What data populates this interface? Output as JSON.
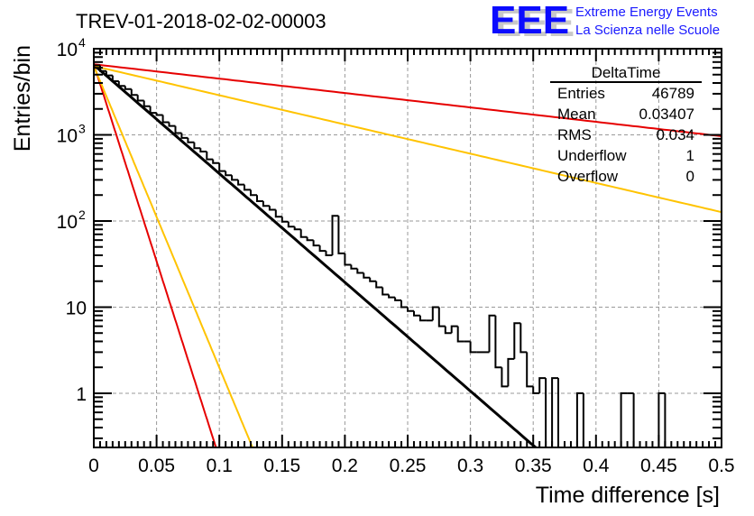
{
  "chart_data": {
    "type": "bar",
    "subtype": "histogram-log-y",
    "title": "TREV-01-2018-02-02-00003",
    "xlabel": "Time difference [s]",
    "ylabel": "Entries/bin",
    "xlim": [
      0,
      0.5
    ],
    "ylim_log": [
      0.235,
      10000
    ],
    "log_y": true,
    "grid": true,
    "x_ticks": [
      "0",
      "0.05",
      "0.1",
      "0.15",
      "0.2",
      "0.25",
      "0.3",
      "0.35",
      "0.4",
      "0.45",
      "0.5"
    ],
    "x_tick_values": [
      0,
      0.05,
      0.1,
      0.15,
      0.2,
      0.25,
      0.3,
      0.35,
      0.4,
      0.45,
      0.5
    ],
    "y_ticks": [
      {
        "value": 1,
        "base": "1",
        "exp": ""
      },
      {
        "value": 10,
        "base": "10",
        "exp": ""
      },
      {
        "value": 100,
        "base": "10",
        "exp": "2"
      },
      {
        "value": 1000,
        "base": "10",
        "exp": "3"
      },
      {
        "value": 10000,
        "base": "10",
        "exp": "4"
      }
    ],
    "bin_width": 0.005,
    "histogram": {
      "name": "DeltaTime",
      "color": "#000000",
      "bin_start": 0,
      "values": [
        6400,
        5500,
        4900,
        4200,
        3700,
        3400,
        2900,
        2500,
        2150,
        1800,
        1700,
        1400,
        1270,
        1050,
        920,
        820,
        700,
        640,
        520,
        470,
        380,
        340,
        300,
        265,
        230,
        200,
        170,
        150,
        135,
        112,
        98,
        86,
        80,
        65,
        60,
        52,
        45,
        40,
        115,
        42,
        31,
        28,
        25,
        22,
        20,
        17,
        14,
        13,
        12,
        10,
        9,
        8,
        7,
        7,
        10,
        6,
        5,
        6,
        4,
        4,
        3,
        3,
        3,
        8,
        2,
        1.2,
        2.5,
        6.5,
        3,
        1.2,
        1,
        1.5,
        0,
        1.5,
        0,
        0,
        0,
        1,
        0,
        0,
        0,
        0,
        0,
        0,
        1,
        1,
        0,
        0,
        0,
        0,
        1,
        0,
        0,
        0,
        0,
        0,
        0,
        0,
        0,
        0
      ]
    },
    "series": [
      {
        "name": "fit",
        "color": "#000000",
        "type": "line",
        "n0": 6500,
        "tau": 0.0344,
        "x_range": [
          0,
          0.355
        ]
      },
      {
        "name": "red-slow",
        "color": "#e60000",
        "type": "line",
        "n0": 6600,
        "tau": 0.26,
        "x_range": [
          0,
          0.5
        ]
      },
      {
        "name": "yellow-slow",
        "color": "#ffc300",
        "type": "line",
        "n0": 6300,
        "tau": 0.128,
        "x_range": [
          0,
          0.5
        ]
      },
      {
        "name": "red-fast",
        "color": "#e60000",
        "type": "line",
        "n0": 6600,
        "tau": 0.0095,
        "x_range": [
          0,
          0.105
        ]
      },
      {
        "name": "yellow-fast",
        "color": "#ffc300",
        "type": "line",
        "n0": 6300,
        "tau": 0.0124,
        "x_range": [
          0,
          0.133
        ]
      }
    ],
    "stats_box": {
      "title": "DeltaTime",
      "rows": [
        {
          "label": "Entries",
          "value": "46789"
        },
        {
          "label": "Mean",
          "value": "0.03407"
        },
        {
          "label": "RMS",
          "value": "0.034"
        },
        {
          "label": "Underflow",
          "value": "1"
        },
        {
          "label": "Overflow",
          "value": "0"
        }
      ]
    },
    "logo": {
      "letters": "EEE",
      "line1": "Extreme Energy Events",
      "line2": "La Scienza nelle Scuole"
    }
  }
}
